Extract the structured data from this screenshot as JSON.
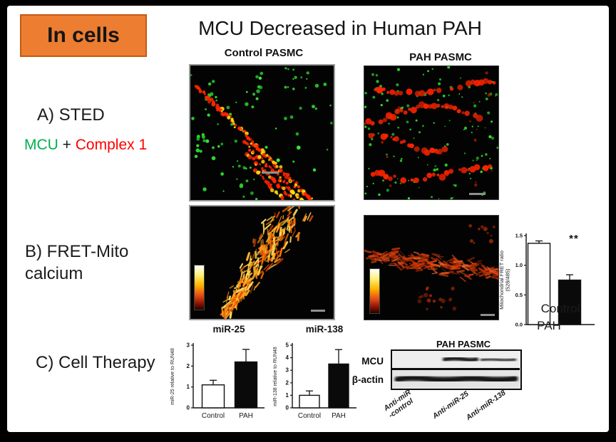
{
  "colors": {
    "accent_orange": "#ED7D31",
    "badge_border": "#C55A11",
    "stain_green": "#27D427",
    "stain_red": "#FF2400",
    "stain_yellow": "#FFD90F",
    "legend_green": "#00B050",
    "legend_red": "#FF0000",
    "bar_white": "#FFFFFF",
    "bar_black": "#0A0A0A"
  },
  "badge": {
    "label": "In cells"
  },
  "title": "MCU Decreased in Human PAH",
  "columns": {
    "control": "Control PASMC",
    "pah": "PAH PASMC"
  },
  "sections": {
    "a": {
      "label": "A) STED",
      "legend": {
        "mcu": "MCU",
        "plus": " + ",
        "complex1": "Complex 1"
      }
    },
    "b": {
      "line1": "B) FRET-Mito",
      "line2": "calcium"
    },
    "c": {
      "label": "C) Cell Therapy"
    }
  },
  "chart_data": [
    {
      "id": "fret",
      "type": "bar",
      "title": "",
      "ylabel": "Mitochondrial FRET ratio (528/485)",
      "ylabel_lines": [
        "Mitochondrial FRET ratio",
        "(528/485)"
      ],
      "categories": [
        "Control",
        "PAH"
      ],
      "values": [
        1.37,
        0.75
      ],
      "errors": [
        0.04,
        0.09
      ],
      "ylim": [
        0,
        1.5
      ],
      "yticks": [
        0,
        0.5,
        1,
        1.5
      ],
      "ytick_labels": [
        "0.0",
        "0.5",
        "1.0",
        "1.5"
      ],
      "bar_colors": [
        "#FFFFFF",
        "#0A0A0A"
      ],
      "annotation": {
        "text": "**",
        "bar": 1
      },
      "xlabel_layout": "stacked-below"
    },
    {
      "id": "mir25",
      "type": "bar",
      "title": "miR-25",
      "ylabel": "miR-25 relative to RUN48",
      "ylabel_lines": [
        "miR-25 relative to RUN48"
      ],
      "categories": [
        "Control",
        "PAH"
      ],
      "values": [
        1.1,
        2.2
      ],
      "errors": [
        0.22,
        0.6
      ],
      "ylim": [
        0,
        3
      ],
      "yticks": [
        0,
        1,
        2,
        3
      ],
      "ytick_labels": [
        "0",
        "1",
        "2",
        "3"
      ],
      "bar_colors": [
        "#FFFFFF",
        "#0A0A0A"
      ]
    },
    {
      "id": "mir138",
      "type": "bar",
      "title": "miR-138",
      "ylabel": "miR-138 relative to RUN48",
      "ylabel_lines": [
        "miR-138 relative to RUN48"
      ],
      "categories": [
        "Control",
        "PAH"
      ],
      "values": [
        1.0,
        3.5
      ],
      "errors": [
        0.35,
        1.15
      ],
      "ylim": [
        0,
        5
      ],
      "yticks": [
        0,
        1,
        2,
        3,
        4,
        5
      ],
      "ytick_labels": [
        "0",
        "1",
        "2",
        "3",
        "4",
        "5"
      ],
      "bar_colors": [
        "#FFFFFF",
        "#0A0A0A"
      ]
    }
  ],
  "western": {
    "title": "PAH PASMC",
    "row_labels": [
      "MCU",
      "β-actin"
    ],
    "lanes": [
      "Anti-miR\n-control",
      "Anti-miR-25",
      "Anti-miR-138"
    ]
  }
}
